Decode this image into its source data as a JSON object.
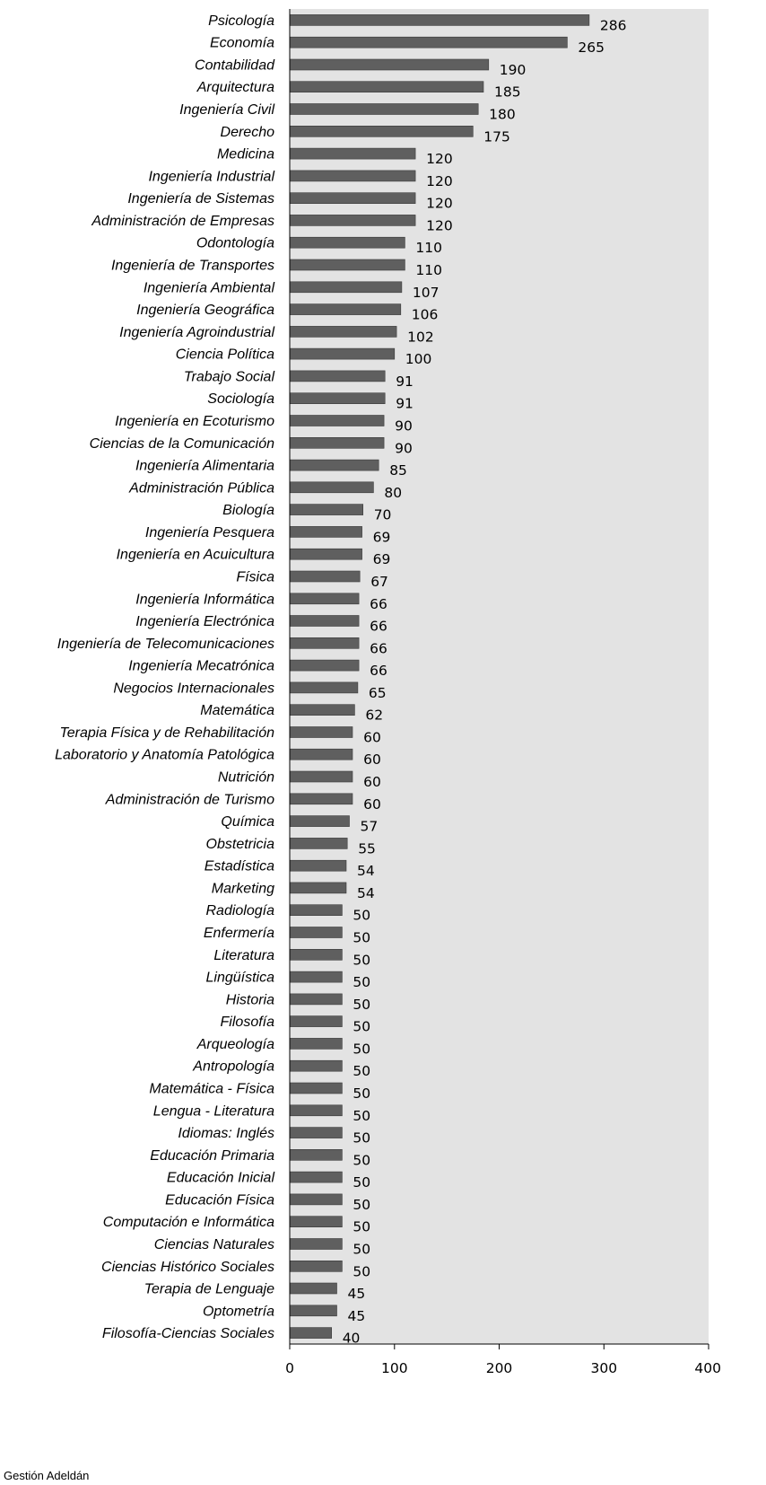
{
  "chart_data": {
    "type": "bar",
    "orientation": "horizontal",
    "categories": [
      "Psicología",
      "Economía",
      "Contabilidad",
      "Arquitectura",
      "Ingeniería Civil",
      "Derecho",
      "Medicina",
      "Ingeniería Industrial",
      "Ingeniería de Sistemas",
      "Administración de Empresas",
      "Odontología",
      "Ingeniería de Transportes",
      "Ingeniería Ambiental",
      "Ingeniería Geográfica",
      "Ingeniería Agroindustrial",
      "Ciencia Política",
      "Trabajo Social",
      "Sociología",
      "Ingeniería en Ecoturismo",
      "Ciencias de la Comunicación",
      "Ingeniería Alimentaria",
      "Administración Pública",
      "Biología",
      "Ingeniería Pesquera",
      "Ingeniería en Acuicultura",
      "Física",
      "Ingeniería Informática",
      "Ingeniería Electrónica",
      "Ingeniería de Telecomunicaciones",
      "Ingeniería Mecatrónica",
      "Negocios Internacionales",
      "Matemática",
      "Terapia Física y de Rehabilitación",
      "Laboratorio y Anatomía Patológica",
      "Nutrición",
      "Administración de Turismo",
      "Química",
      "Obstetricia",
      "Estadística",
      "Marketing",
      "Radiología",
      "Enfermería",
      "Literatura",
      "Lingüística",
      "Historia",
      "Filosofía",
      "Arqueología",
      "Antropología",
      "Matemática - Física",
      "Lengua - Literatura",
      "Idiomas: Inglés",
      "Educación Primaria",
      "Educación Inicial",
      "Educación Física",
      "Computación e Informática",
      "Ciencias Naturales",
      "Ciencias Histórico Sociales",
      "Terapia de Lenguaje",
      "Optometría",
      "Filosofía-Ciencias Sociales"
    ],
    "values": [
      286,
      265,
      190,
      185,
      180,
      175,
      120,
      120,
      120,
      120,
      110,
      110,
      107,
      106,
      102,
      100,
      91,
      91,
      90,
      90,
      85,
      80,
      70,
      69,
      69,
      67,
      66,
      66,
      66,
      66,
      65,
      62,
      60,
      60,
      60,
      60,
      57,
      55,
      54,
      54,
      50,
      50,
      50,
      50,
      50,
      50,
      50,
      50,
      50,
      50,
      50,
      50,
      50,
      50,
      50,
      50,
      50,
      45,
      45,
      40
    ],
    "xlim": [
      0,
      400
    ],
    "xticks": [
      "0",
      "100",
      "200",
      "300",
      "400"
    ],
    "grid": false,
    "bar_color": "#5f5f5f",
    "plot_background": "#e3e3e3",
    "footer_text": "Gestión Adeldán"
  }
}
